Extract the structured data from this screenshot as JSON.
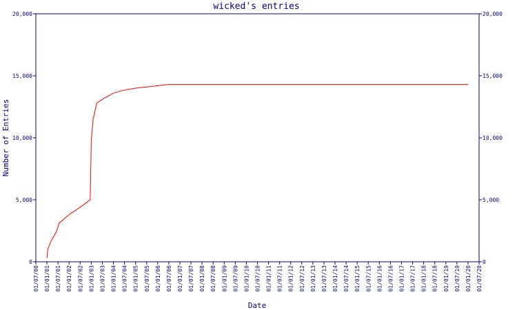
{
  "chart_data": {
    "type": "line",
    "title": "wicked's entries",
    "xlabel": "Date",
    "ylabel": "Number of Entries",
    "ylim": [
      0,
      20000
    ],
    "y_ticks": [
      0,
      5000,
      10000,
      15000,
      20000
    ],
    "y_tick_labels": [
      "0",
      "5,000",
      "10,000",
      "15,000",
      "20,000"
    ],
    "x_tick_labels": [
      "01/07/00",
      "01/01/01",
      "01/07/01",
      "01/01/02",
      "01/07/02",
      "01/01/03",
      "01/07/03",
      "01/01/04",
      "01/07/04",
      "01/01/05",
      "01/07/05",
      "01/01/06",
      "01/07/06",
      "01/01/07",
      "01/07/07",
      "01/01/08",
      "01/07/08",
      "01/01/09",
      "01/07/09",
      "01/01/10",
      "01/07/10",
      "01/01/11",
      "01/07/11",
      "01/01/12",
      "01/07/12",
      "01/01/13",
      "01/07/13",
      "01/01/14",
      "01/07/14",
      "01/01/15",
      "01/07/15",
      "01/01/16",
      "01/07/16",
      "01/01/17",
      "01/07/17",
      "01/01/18",
      "01/07/18",
      "01/01/19",
      "01/07/19",
      "01/01/20",
      "01/07/20"
    ],
    "grid": false,
    "series": [
      {
        "color": "#ff0000",
        "x": [
          "2001-01-01",
          "2001-01-15",
          "2001-03-01",
          "2001-06-01",
          "2001-07-01",
          "2001-07-15",
          "2002-01-01",
          "2002-07-01",
          "2002-12-15",
          "2003-01-01",
          "2003-02-01",
          "2003-04-01",
          "2003-07-01",
          "2004-01-01",
          "2004-07-01",
          "2005-01-01",
          "2005-07-01",
          "2006-01-01",
          "2006-07-01",
          "2020-01-01"
        ],
        "values": [
          300,
          1000,
          1600,
          2400,
          2800,
          3100,
          3800,
          4400,
          5000,
          9800,
          11500,
          12800,
          13100,
          13600,
          13850,
          14000,
          14100,
          14200,
          14300,
          14300
        ]
      }
    ]
  }
}
